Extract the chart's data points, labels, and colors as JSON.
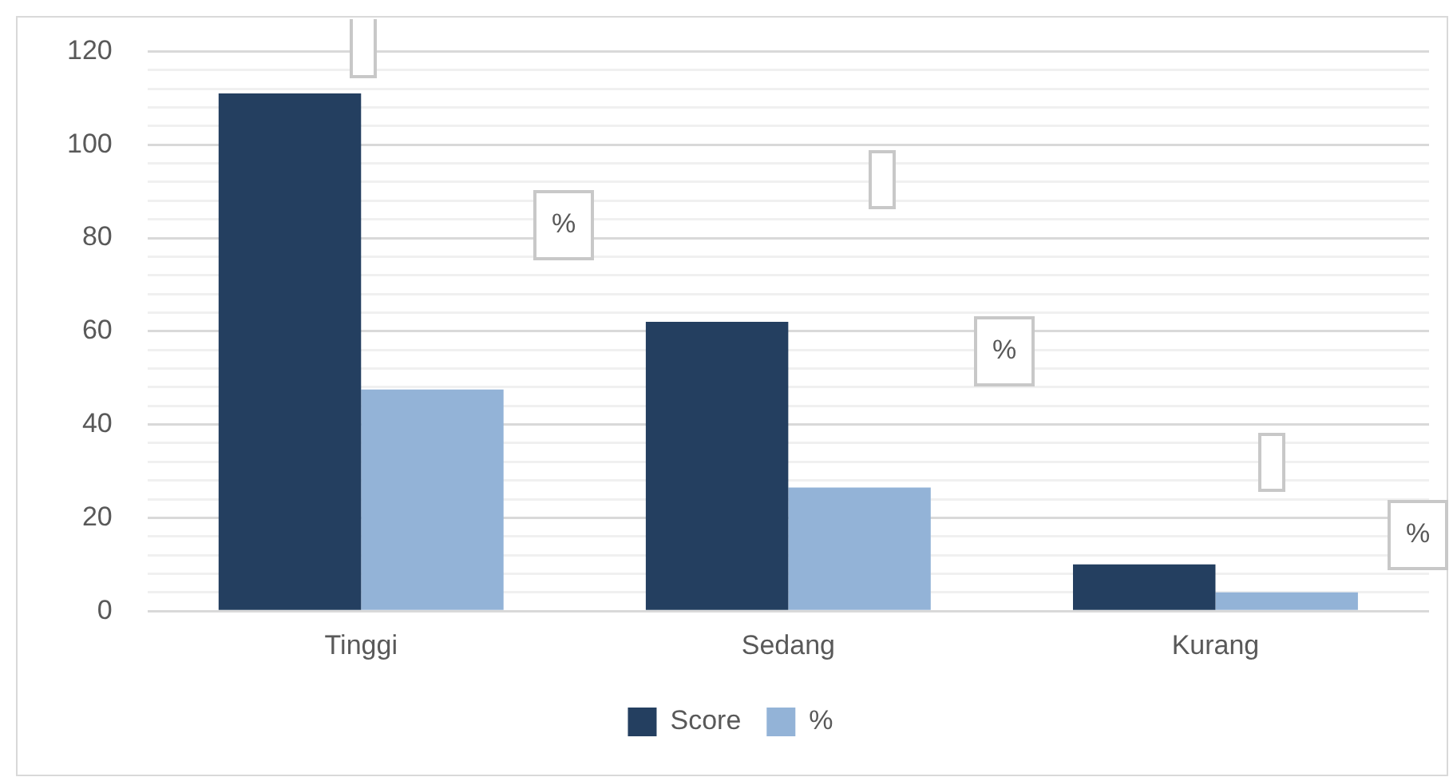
{
  "chart_data": {
    "type": "bar",
    "categories": [
      "Tinggi",
      "Sedang",
      "Kurang"
    ],
    "series": [
      {
        "name": "Score",
        "color": "#243f60",
        "values": [
          111,
          62,
          10
        ]
      },
      {
        "name": "%",
        "color": "#93b3d7",
        "values": [
          47.5,
          26.5,
          4
        ]
      }
    ],
    "ylim": [
      0,
      120
    ],
    "yticks": [
      0,
      {
        "value": 4,
        "label": null
      },
      {
        "value": 8,
        "label": null
      },
      {
        "value": 12,
        "label": null
      },
      {
        "value": 16,
        "label": null
      },
      20,
      {
        "value": 24,
        "label": null
      },
      {
        "value": 28,
        "label": null
      },
      {
        "value": 32,
        "label": null
      },
      {
        "value": 36,
        "label": null
      },
      40,
      {
        "value": 44,
        "label": null
      },
      {
        "value": 48,
        "label": null
      },
      {
        "value": 52,
        "label": null
      },
      {
        "value": 56,
        "label": null
      },
      60,
      {
        "value": 64,
        "label": null
      },
      {
        "value": 68,
        "label": null
      },
      {
        "value": 72,
        "label": null
      },
      {
        "value": 76,
        "label": null
      },
      80,
      {
        "value": 84,
        "label": null
      },
      {
        "value": 88,
        "label": null
      },
      {
        "value": 92,
        "label": null
      },
      {
        "value": 96,
        "label": null
      },
      100,
      {
        "value": 104,
        "label": null
      },
      {
        "value": 108,
        "label": null
      },
      {
        "value": 112,
        "label": null
      },
      {
        "value": 116,
        "label": null
      },
      120
    ],
    "annotations": [
      "%",
      "%",
      "%"
    ],
    "grid": "y",
    "legend": "bottom"
  }
}
